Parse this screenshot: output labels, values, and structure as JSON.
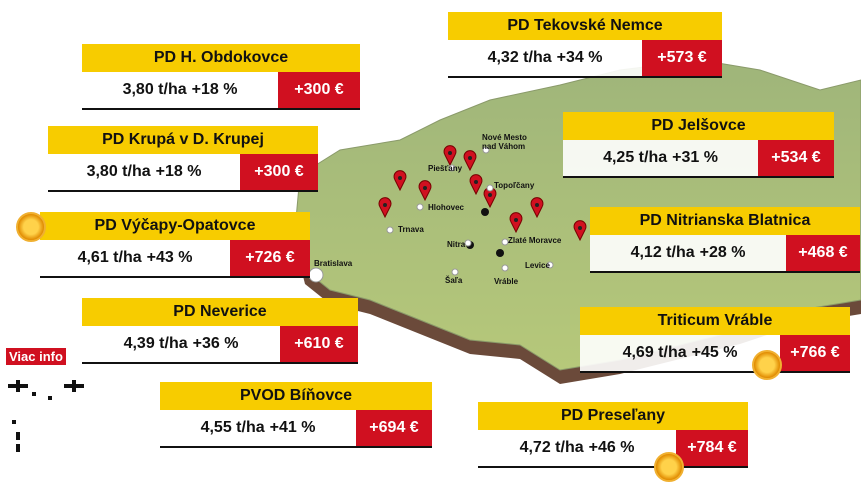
{
  "farms": [
    {
      "name": "PD H. Obdokovce",
      "yield": "3,80 t/ha",
      "change": "+18 %",
      "profit": "+300 €"
    },
    {
      "name": "PD Krupá v D. Krupej",
      "yield": "3,80 t/ha",
      "change": "+18 %",
      "profit": "+300 €"
    },
    {
      "name": "PD Výčapy-Opatovce",
      "yield": "4,61 t/ha",
      "change": "+43 %",
      "profit": "+726 €"
    },
    {
      "name": "PD Neverice",
      "yield": "4,39 t/ha",
      "change": "+36 %",
      "profit": "+610 €"
    },
    {
      "name": "PVOD Bíňovce",
      "yield": "4,55 t/ha",
      "change": "+41 %",
      "profit": "+694 €"
    },
    {
      "name": "PD Tekovské Nemce",
      "yield": "4,32 t/ha",
      "change": "+34 %",
      "profit": "+573 €"
    },
    {
      "name": "PD Jelšovce",
      "yield": "4,25 t/ha",
      "change": "+31 %",
      "profit": "+534 €"
    },
    {
      "name": "PD Nitrianska Blatnica",
      "yield": "4,12 t/ha",
      "change": "+28 %",
      "profit": "+468 €"
    },
    {
      "name": "Triticum Vráble",
      "yield": "4,69 t/ha",
      "change": "+45 %",
      "profit": "+766 €"
    },
    {
      "name": "PD Preseľany",
      "yield": "4,72 t/ha",
      "change": "+46 %",
      "profit": "+784 €"
    }
  ],
  "cities": [
    {
      "lines": [
        "Piešťany"
      ]
    },
    {
      "lines": [
        "Nové Mesto",
        "nad Váhom"
      ]
    },
    {
      "lines": [
        "Hlohovec"
      ]
    },
    {
      "lines": [
        "Topoľčany"
      ]
    },
    {
      "lines": [
        "Trnava"
      ]
    },
    {
      "lines": [
        "Nitra"
      ]
    },
    {
      "lines": [
        "Zlaté Moravce"
      ]
    },
    {
      "lines": [
        "Bratislava"
      ]
    },
    {
      "lines": [
        "Šaľa"
      ]
    },
    {
      "lines": [
        "Vráble"
      ]
    },
    {
      "lines": [
        "Levice"
      ]
    }
  ],
  "more_info": "Viac info"
}
